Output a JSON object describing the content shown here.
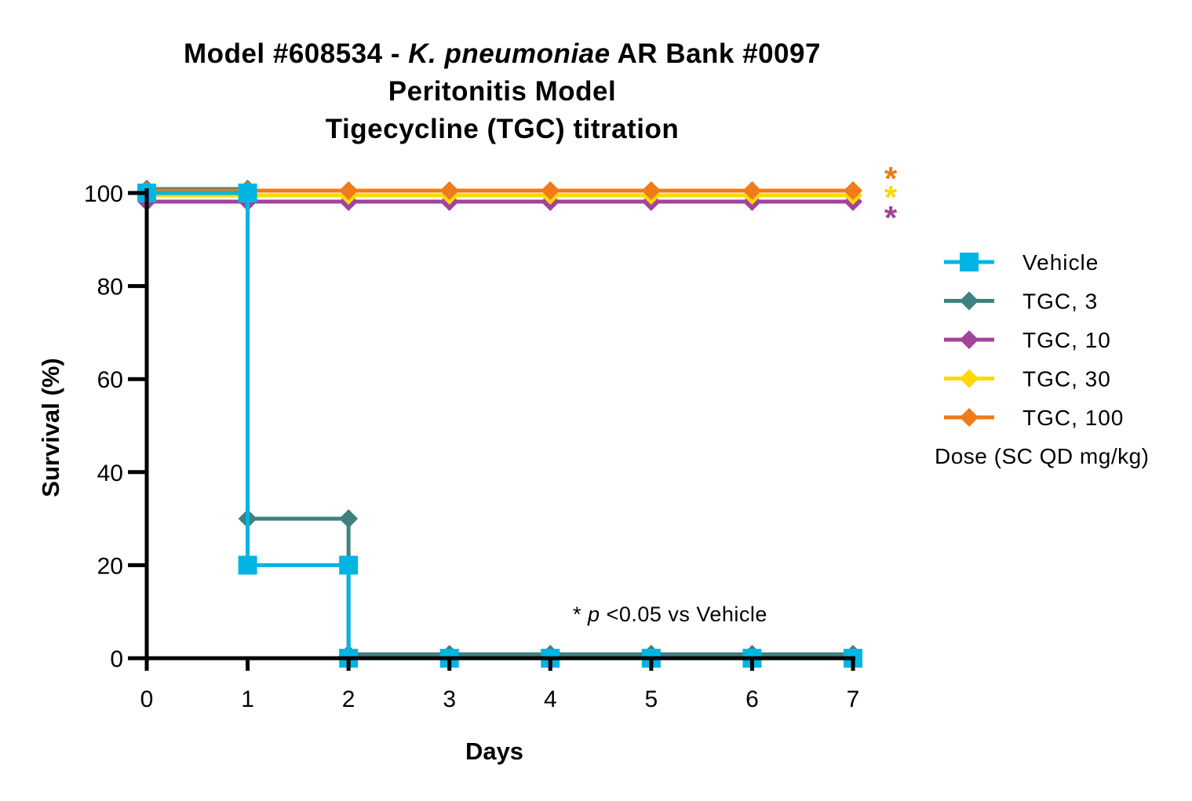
{
  "chart_data": {
    "type": "line",
    "step": true,
    "title_lines": [
      {
        "parts": [
          {
            "text": "Model #608534 - ",
            "italic": false
          },
          {
            "text": "K. pneumoniae",
            "italic": true
          },
          {
            "text": " AR Bank #0097",
            "italic": false
          }
        ]
      },
      {
        "parts": [
          {
            "text": "Peritonitis Model",
            "italic": false
          }
        ]
      },
      {
        "parts": [
          {
            "text": "Tigecycline (TGC) titration",
            "italic": false
          }
        ]
      }
    ],
    "xlabel": "Days",
    "ylabel": "Survival (%)",
    "xlim": [
      0,
      7
    ],
    "ylim": [
      0,
      100
    ],
    "xticks": [
      0,
      1,
      2,
      3,
      4,
      5,
      6,
      7
    ],
    "yticks": [
      0,
      20,
      40,
      60,
      80,
      100
    ],
    "x": [
      0,
      1,
      2,
      3,
      4,
      5,
      6,
      7
    ],
    "grid": false,
    "legend_position": "right",
    "legend_footer": "Dose (SC QD mg/kg)",
    "series": [
      {
        "name": "TGC, 3",
        "color": "#3f8080",
        "marker": "diamond",
        "values": [
          100,
          30,
          0,
          0,
          0,
          0,
          0,
          0
        ]
      },
      {
        "name": "TGC, 10",
        "color": "#a2439c",
        "marker": "diamond",
        "values": [
          100,
          100,
          100,
          100,
          100,
          100,
          100,
          100
        ]
      },
      {
        "name": "TGC, 30",
        "color": "#ffd800",
        "marker": "diamond",
        "values": [
          100,
          100,
          100,
          100,
          100,
          100,
          100,
          100
        ]
      },
      {
        "name": "TGC, 100",
        "color": "#ef7b1a",
        "marker": "diamond",
        "values": [
          100,
          100,
          100,
          100,
          100,
          100,
          100,
          100
        ]
      },
      {
        "name": "Vehicle",
        "color": "#00b4e4",
        "marker": "square",
        "values": [
          100,
          20,
          0,
          0,
          0,
          0,
          0,
          0
        ]
      }
    ],
    "legend_order": [
      "Vehicle",
      "TGC, 3",
      "TGC, 10",
      "TGC, 30",
      "TGC, 100"
    ],
    "significance_markers": [
      {
        "text": "*",
        "color": "#ef7b1a",
        "series": "TGC, 100"
      },
      {
        "text": "*",
        "color": "#ffd800",
        "series": "TGC, 30"
      },
      {
        "text": "*",
        "color": "#a2439c",
        "series": "TGC, 10"
      }
    ],
    "annotation": {
      "parts": [
        {
          "text": "* ",
          "italic": false
        },
        {
          "text": "p",
          "italic": true
        },
        {
          "text": " <0.05 vs Vehicle",
          "italic": false
        }
      ]
    }
  }
}
